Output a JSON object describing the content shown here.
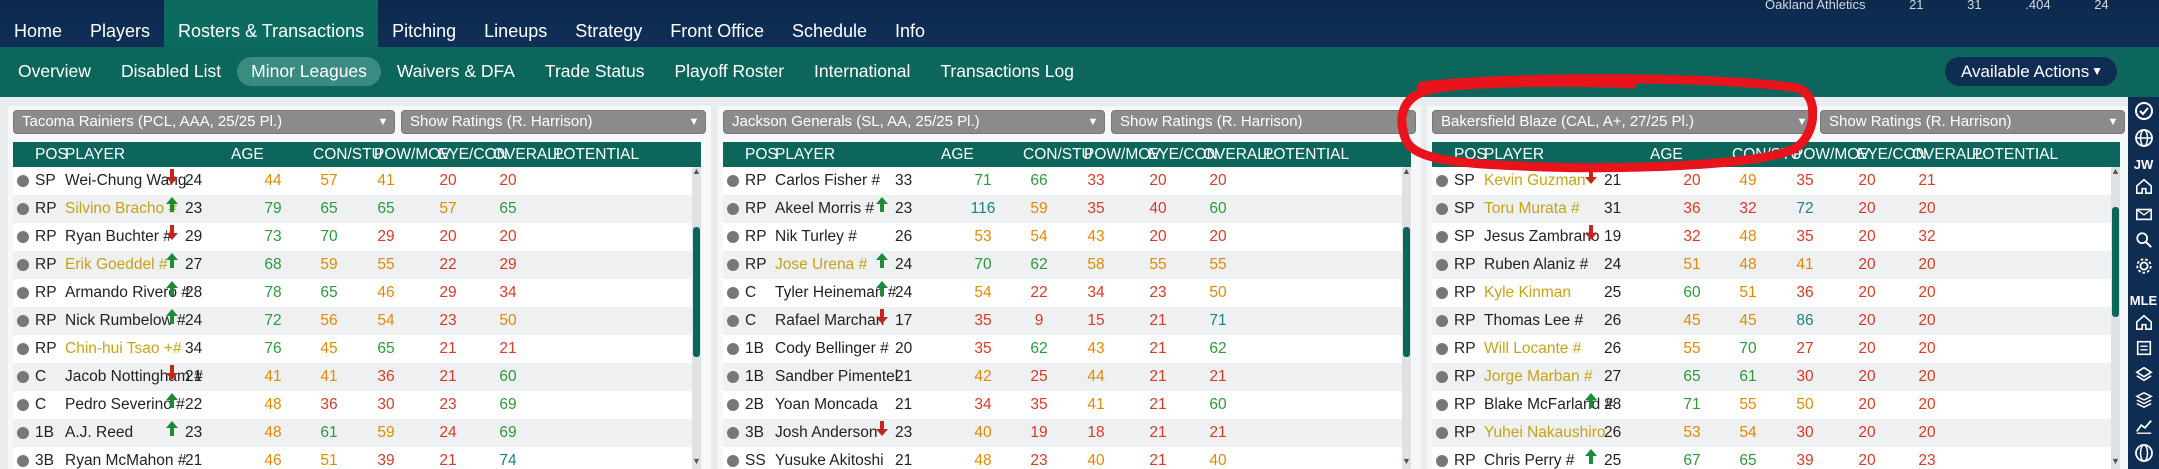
{
  "nav": {
    "items": [
      "Home",
      "Players",
      "Rosters & Transactions",
      "Pitching",
      "Lineups",
      "Strategy",
      "Front Office",
      "Schedule",
      "Info"
    ],
    "active": 2
  },
  "top_info": {
    "team": "Oakland Athletics",
    "stats": [
      "21",
      "31",
      ".404",
      "24"
    ]
  },
  "subnav": {
    "items": [
      "Overview",
      "Disabled List",
      "Minor Leagues",
      "Waivers & DFA",
      "Trade Status",
      "Playoff Roster",
      "International",
      "Transactions Log"
    ],
    "active": 2
  },
  "available_actions": "Available Actions",
  "sidebar": {
    "icons": [
      "check-circle-icon",
      "globe-icon",
      "initials-jw",
      "home-icon",
      "mail-icon",
      "search-icon",
      "gear-icon",
      "text-mle",
      "home-icon-2",
      "list-icon",
      "layers-icon",
      "stack-icon",
      "chart-icon",
      "globe-icon-2"
    ],
    "jw": "JW",
    "mle": "MLE"
  },
  "columns": [
    "POS",
    "PLAYER",
    "AGE",
    "CON/STU",
    "POW/MOV",
    "EYE/CON",
    "OVERALL",
    "POTENTIAL"
  ],
  "colors": {
    "orange": "#e08a00",
    "red": "#d93a25",
    "green": "#2a9a3a",
    "teal": "#1e7f86",
    "yellow": "#c8a800",
    "highlight_name": "#c4a416",
    "teal_header": "#0d665c",
    "navy": "#0f2c52"
  },
  "panels": [
    {
      "team_select": "Tacoma Rainiers (PCL, AAA, 25/25 Pl.)",
      "ratings_select": "Show Ratings (R. Harrison)",
      "rows": [
        {
          "pos": "SP",
          "name": "Wei-Chung Wang",
          "hl": false,
          "arrow": "down",
          "age": "24",
          "v": [
            [
              "44",
              "org"
            ],
            [
              "57",
              "org"
            ],
            [
              "41",
              "org"
            ],
            [
              "20",
              "red"
            ],
            [
              "20",
              "red"
            ]
          ]
        },
        {
          "pos": "RP",
          "name": "Silvino Bracho #",
          "hl": true,
          "arrow": "up",
          "age": "23",
          "v": [
            [
              "79",
              "grn"
            ],
            [
              "65",
              "grn"
            ],
            [
              "65",
              "grn"
            ],
            [
              "57",
              "org"
            ],
            [
              "65",
              "grn"
            ]
          ]
        },
        {
          "pos": "RP",
          "name": "Ryan Buchter #",
          "hl": false,
          "arrow": "down",
          "age": "29",
          "v": [
            [
              "73",
              "grn"
            ],
            [
              "70",
              "grn"
            ],
            [
              "29",
              "red"
            ],
            [
              "20",
              "red"
            ],
            [
              "20",
              "red"
            ]
          ]
        },
        {
          "pos": "RP",
          "name": "Erik Goeddel #",
          "hl": true,
          "arrow": "up",
          "age": "27",
          "v": [
            [
              "68",
              "grn"
            ],
            [
              "59",
              "org"
            ],
            [
              "55",
              "org"
            ],
            [
              "22",
              "red"
            ],
            [
              "29",
              "red"
            ]
          ]
        },
        {
          "pos": "RP",
          "name": "Armando Rivero #",
          "hl": false,
          "arrow": "up",
          "age": "28",
          "v": [
            [
              "78",
              "grn"
            ],
            [
              "65",
              "grn"
            ],
            [
              "46",
              "org"
            ],
            [
              "29",
              "red"
            ],
            [
              "34",
              "red"
            ]
          ]
        },
        {
          "pos": "RP",
          "name": "Nick Rumbelow #",
          "hl": false,
          "arrow": "up",
          "age": "24",
          "v": [
            [
              "72",
              "grn"
            ],
            [
              "56",
              "org"
            ],
            [
              "54",
              "org"
            ],
            [
              "23",
              "red"
            ],
            [
              "50",
              "org"
            ]
          ]
        },
        {
          "pos": "RP",
          "name": "Chin-hui Tsao +#",
          "hl": true,
          "arrow": "",
          "age": "34",
          "v": [
            [
              "76",
              "grn"
            ],
            [
              "45",
              "org"
            ],
            [
              "65",
              "grn"
            ],
            [
              "21",
              "red"
            ],
            [
              "21",
              "red"
            ]
          ]
        },
        {
          "pos": "C",
          "name": "Jacob Nottingham #",
          "hl": false,
          "arrow": "down",
          "age": "21",
          "v": [
            [
              "41",
              "org"
            ],
            [
              "41",
              "org"
            ],
            [
              "36",
              "red"
            ],
            [
              "21",
              "red"
            ],
            [
              "60",
              "grn"
            ]
          ]
        },
        {
          "pos": "C",
          "name": "Pedro Severino #",
          "hl": false,
          "arrow": "up",
          "age": "22",
          "v": [
            [
              "48",
              "org"
            ],
            [
              "36",
              "red"
            ],
            [
              "30",
              "red"
            ],
            [
              "23",
              "red"
            ],
            [
              "69",
              "grn"
            ]
          ]
        },
        {
          "pos": "1B",
          "name": "A.J. Reed",
          "hl": false,
          "arrow": "up",
          "age": "23",
          "v": [
            [
              "48",
              "org"
            ],
            [
              "61",
              "grn"
            ],
            [
              "59",
              "org"
            ],
            [
              "24",
              "red"
            ],
            [
              "69",
              "grn"
            ]
          ]
        },
        {
          "pos": "3B",
          "name": "Ryan McMahon #",
          "hl": false,
          "arrow": "",
          "age": "21",
          "v": [
            [
              "46",
              "org"
            ],
            [
              "51",
              "org"
            ],
            [
              "39",
              "red"
            ],
            [
              "21",
              "red"
            ],
            [
              "74",
              "teal"
            ]
          ]
        }
      ]
    },
    {
      "team_select": "Jackson Generals (SL, AA, 25/25 Pl.)",
      "ratings_select": "Show Ratings (R. Harrison)",
      "rows": [
        {
          "pos": "RP",
          "name": "Carlos Fisher #",
          "hl": false,
          "arrow": "",
          "age": "33",
          "v": [
            [
              "71",
              "grn"
            ],
            [
              "66",
              "grn"
            ],
            [
              "33",
              "red"
            ],
            [
              "20",
              "red"
            ],
            [
              "20",
              "red"
            ]
          ]
        },
        {
          "pos": "RP",
          "name": "Akeel Morris #",
          "hl": false,
          "arrow": "up",
          "age": "23",
          "v": [
            [
              "116",
              "teal"
            ],
            [
              "59",
              "org"
            ],
            [
              "35",
              "red"
            ],
            [
              "40",
              "red"
            ],
            [
              "60",
              "grn"
            ]
          ]
        },
        {
          "pos": "RP",
          "name": "Nik Turley #",
          "hl": false,
          "arrow": "",
          "age": "26",
          "v": [
            [
              "53",
              "org"
            ],
            [
              "54",
              "org"
            ],
            [
              "43",
              "org"
            ],
            [
              "20",
              "red"
            ],
            [
              "20",
              "red"
            ]
          ]
        },
        {
          "pos": "RP",
          "name": "Jose Urena #",
          "hl": true,
          "arrow": "up",
          "age": "24",
          "v": [
            [
              "70",
              "grn"
            ],
            [
              "62",
              "grn"
            ],
            [
              "58",
              "org"
            ],
            [
              "55",
              "org"
            ],
            [
              "55",
              "org"
            ]
          ]
        },
        {
          "pos": "C",
          "name": "Tyler Heineman #",
          "hl": false,
          "arrow": "up",
          "age": "24",
          "v": [
            [
              "54",
              "org"
            ],
            [
              "22",
              "red"
            ],
            [
              "34",
              "red"
            ],
            [
              "23",
              "red"
            ],
            [
              "50",
              "org"
            ]
          ]
        },
        {
          "pos": "C",
          "name": "Rafael Marchan",
          "hl": false,
          "arrow": "down",
          "age": "17",
          "v": [
            [
              "35",
              "red"
            ],
            [
              "9",
              "red"
            ],
            [
              "15",
              "red"
            ],
            [
              "21",
              "red"
            ],
            [
              "71",
              "teal"
            ]
          ]
        },
        {
          "pos": "1B",
          "name": "Cody Bellinger #",
          "hl": false,
          "arrow": "",
          "age": "20",
          "v": [
            [
              "35",
              "red"
            ],
            [
              "62",
              "grn"
            ],
            [
              "43",
              "org"
            ],
            [
              "21",
              "red"
            ],
            [
              "62",
              "grn"
            ]
          ]
        },
        {
          "pos": "1B",
          "name": "Sandber Pimentel",
          "hl": false,
          "arrow": "",
          "age": "21",
          "v": [
            [
              "42",
              "org"
            ],
            [
              "25",
              "red"
            ],
            [
              "44",
              "org"
            ],
            [
              "21",
              "red"
            ],
            [
              "21",
              "red"
            ]
          ]
        },
        {
          "pos": "2B",
          "name": "Yoan Moncada",
          "hl": false,
          "arrow": "",
          "age": "21",
          "v": [
            [
              "34",
              "red"
            ],
            [
              "35",
              "red"
            ],
            [
              "41",
              "org"
            ],
            [
              "21",
              "red"
            ],
            [
              "60",
              "grn"
            ]
          ]
        },
        {
          "pos": "3B",
          "name": "Josh Anderson",
          "hl": false,
          "arrow": "down",
          "age": "23",
          "v": [
            [
              "40",
              "org"
            ],
            [
              "19",
              "red"
            ],
            [
              "18",
              "red"
            ],
            [
              "21",
              "red"
            ],
            [
              "21",
              "red"
            ]
          ]
        },
        {
          "pos": "SS",
          "name": "Yusuke Akitoshi",
          "hl": false,
          "arrow": "",
          "age": "21",
          "v": [
            [
              "48",
              "org"
            ],
            [
              "23",
              "red"
            ],
            [
              "40",
              "org"
            ],
            [
              "21",
              "red"
            ],
            [
              "40",
              "org"
            ]
          ]
        }
      ]
    },
    {
      "team_select": "Bakersfield Blaze (CAL, A+, 27/25 Pl.)",
      "ratings_select": "Show Ratings (R. Harrison)",
      "rows": [
        {
          "pos": "SP",
          "name": "Kevin Guzman",
          "hl": true,
          "arrow": "down",
          "age": "21",
          "v": [
            [
              "20",
              "red"
            ],
            [
              "49",
              "org"
            ],
            [
              "35",
              "red"
            ],
            [
              "20",
              "red"
            ],
            [
              "21",
              "red"
            ]
          ]
        },
        {
          "pos": "SP",
          "name": "Toru Murata #",
          "hl": true,
          "arrow": "",
          "age": "31",
          "v": [
            [
              "36",
              "red"
            ],
            [
              "32",
              "red"
            ],
            [
              "72",
              "teal"
            ],
            [
              "20",
              "red"
            ],
            [
              "20",
              "red"
            ]
          ]
        },
        {
          "pos": "SP",
          "name": "Jesus Zambrano",
          "hl": false,
          "arrow": "down",
          "age": "19",
          "v": [
            [
              "32",
              "red"
            ],
            [
              "48",
              "org"
            ],
            [
              "35",
              "red"
            ],
            [
              "20",
              "red"
            ],
            [
              "32",
              "red"
            ]
          ]
        },
        {
          "pos": "RP",
          "name": "Ruben Alaniz #",
          "hl": false,
          "arrow": "",
          "age": "24",
          "v": [
            [
              "51",
              "org"
            ],
            [
              "48",
              "org"
            ],
            [
              "41",
              "org"
            ],
            [
              "20",
              "red"
            ],
            [
              "20",
              "red"
            ]
          ]
        },
        {
          "pos": "RP",
          "name": "Kyle Kinman",
          "hl": true,
          "arrow": "",
          "age": "25",
          "v": [
            [
              "60",
              "grn"
            ],
            [
              "51",
              "org"
            ],
            [
              "36",
              "red"
            ],
            [
              "20",
              "red"
            ],
            [
              "20",
              "red"
            ]
          ]
        },
        {
          "pos": "RP",
          "name": "Thomas Lee #",
          "hl": false,
          "arrow": "",
          "age": "26",
          "v": [
            [
              "45",
              "org"
            ],
            [
              "45",
              "org"
            ],
            [
              "86",
              "teal"
            ],
            [
              "20",
              "red"
            ],
            [
              "20",
              "red"
            ]
          ]
        },
        {
          "pos": "RP",
          "name": "Will Locante #",
          "hl": true,
          "arrow": "",
          "age": "26",
          "v": [
            [
              "55",
              "org"
            ],
            [
              "70",
              "grn"
            ],
            [
              "27",
              "red"
            ],
            [
              "20",
              "red"
            ],
            [
              "20",
              "red"
            ]
          ]
        },
        {
          "pos": "RP",
          "name": "Jorge Marban #",
          "hl": true,
          "arrow": "",
          "age": "27",
          "v": [
            [
              "65",
              "grn"
            ],
            [
              "61",
              "grn"
            ],
            [
              "30",
              "red"
            ],
            [
              "20",
              "red"
            ],
            [
              "20",
              "red"
            ]
          ]
        },
        {
          "pos": "RP",
          "name": "Blake McFarland #",
          "hl": false,
          "arrow": "up",
          "age": "28",
          "v": [
            [
              "71",
              "grn"
            ],
            [
              "55",
              "org"
            ],
            [
              "50",
              "org"
            ],
            [
              "20",
              "red"
            ],
            [
              "20",
              "red"
            ]
          ]
        },
        {
          "pos": "RP",
          "name": "Yuhei Nakaushiro",
          "hl": true,
          "arrow": "",
          "age": "26",
          "v": [
            [
              "53",
              "org"
            ],
            [
              "54",
              "org"
            ],
            [
              "30",
              "red"
            ],
            [
              "20",
              "red"
            ],
            [
              "20",
              "red"
            ]
          ]
        },
        {
          "pos": "RP",
          "name": "Chris Perry #",
          "hl": false,
          "arrow": "up",
          "age": "25",
          "v": [
            [
              "67",
              "grn"
            ],
            [
              "65",
              "grn"
            ],
            [
              "39",
              "red"
            ],
            [
              "20",
              "red"
            ],
            [
              "23",
              "red"
            ]
          ]
        }
      ]
    }
  ]
}
